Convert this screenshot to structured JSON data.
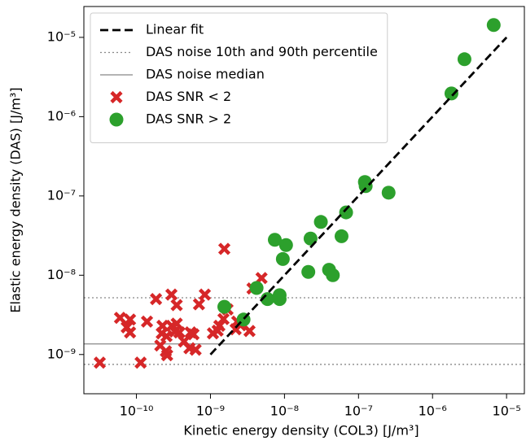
{
  "chart_data": {
    "type": "scatter",
    "xlabel": "Kinetic energy density (COL3) [J/m³]",
    "ylabel": "Elastic energy density (DAS) [J/m³]",
    "xscale": "log",
    "yscale": "log",
    "xlim": [
      1.95e-11,
      1.74e-05
    ],
    "ylim": [
      3.2e-10,
      2.45e-05
    ],
    "xticks": [
      {
        "value": 1e-10,
        "label": "10⁻¹⁰"
      },
      {
        "value": 1e-09,
        "label": "10⁻⁹"
      },
      {
        "value": 1e-08,
        "label": "10⁻⁸"
      },
      {
        "value": 1e-07,
        "label": "10⁻⁷"
      },
      {
        "value": 1e-06,
        "label": "10⁻⁶"
      },
      {
        "value": 1e-05,
        "label": "10⁻⁵"
      }
    ],
    "yticks": [
      {
        "value": 1e-09,
        "label": "10⁻⁹"
      },
      {
        "value": 1e-08,
        "label": "10⁻⁸"
      },
      {
        "value": 1e-07,
        "label": "10⁻⁷"
      },
      {
        "value": 1e-06,
        "label": "10⁻⁶"
      },
      {
        "value": 1e-05,
        "label": "10⁻⁵"
      }
    ],
    "legend": "upper left",
    "lines": [
      {
        "name": "Linear fit",
        "color": "#000000",
        "style": "dashed",
        "x": [
          1e-09,
          1e-05
        ],
        "y": [
          1e-09,
          1e-05
        ]
      }
    ],
    "hlines": [
      {
        "name": "DAS noise 10th and 90th percentile",
        "color": "#888888",
        "style": "dotted",
        "values": [
          7.5e-10,
          5.2e-09
        ]
      },
      {
        "name": "DAS noise median",
        "color": "#888888",
        "style": "solid",
        "values": [
          1.36e-09
        ]
      }
    ],
    "series": [
      {
        "name": "DAS SNR < 2",
        "color": "#d62728",
        "marker": "x",
        "x": [
          1.54e-09,
          4.9e-09,
          3.7e-09,
          3.2e-11,
          1.14e-10,
          6e-11,
          8.2e-11,
          7.4e-11,
          8.2e-11,
          1.39e-10,
          1.84e-10,
          2.97e-10,
          3.5e-10,
          2.25e-10,
          3e-10,
          2.55e-10,
          2.1e-10,
          2.5e-10,
          2.6e-10,
          3.8e-10,
          4.4e-10,
          5.4e-10,
          3.5e-10,
          5.2e-10,
          6.3e-10,
          5.9e-10,
          7e-10,
          8.4e-10,
          1.08e-09,
          1.32e-09,
          1.5e-09,
          1.7e-09,
          1.25e-09,
          2.19e-09,
          2.55e-09,
          3.37e-09,
          2.3e-09,
          2.2e-10,
          3.3e-10
        ],
        "values": [
          2.15e-08,
          9.2e-09,
          6.8e-09,
          7.9e-10,
          7.9e-10,
          2.9e-09,
          2.76e-09,
          2.2e-09,
          1.9e-09,
          2.6e-09,
          5e-09,
          5.7e-09,
          4.2e-09,
          2.3e-09,
          2.3e-09,
          1.7e-09,
          1.3e-09,
          1.1e-09,
          9.8e-10,
          1.9e-09,
          1.46e-09,
          1.9e-09,
          2.45e-09,
          1.2e-09,
          1.15e-09,
          1.8e-09,
          4.3e-09,
          5.7e-09,
          1.85e-09,
          2.3e-09,
          2.8e-09,
          3.7e-09,
          2e-09,
          2.08e-09,
          2.34e-09,
          1.98e-09,
          2.6e-09,
          1.85e-09,
          1.95e-09
        ]
      },
      {
        "name": "DAS SNR > 2",
        "color": "#2ca02c",
        "marker": "o",
        "x": [
          6.7e-06,
          2.7e-06,
          1.8e-06,
          2.55e-07,
          1.22e-07,
          1.25e-07,
          6.8e-08,
          3.1e-08,
          5.9e-08,
          2.25e-08,
          7.4e-09,
          1.05e-08,
          9.5e-09,
          2.1e-08,
          4e-08,
          4.5e-08,
          4.2e-09,
          5.9e-09,
          8.6e-09,
          8.6e-09,
          1.54e-09,
          2.8e-09
        ],
        "values": [
          1.43e-05,
          5.3e-06,
          1.96e-06,
          1.1e-07,
          1.5e-07,
          1.33e-07,
          6.2e-08,
          4.7e-08,
          3.1e-08,
          2.9e-08,
          2.8e-08,
          2.4e-08,
          1.6e-08,
          1.1e-08,
          1.17e-08,
          1e-08,
          6.9e-09,
          5e-09,
          5.6e-09,
          5e-09,
          4e-09,
          2.76e-09
        ]
      }
    ]
  }
}
